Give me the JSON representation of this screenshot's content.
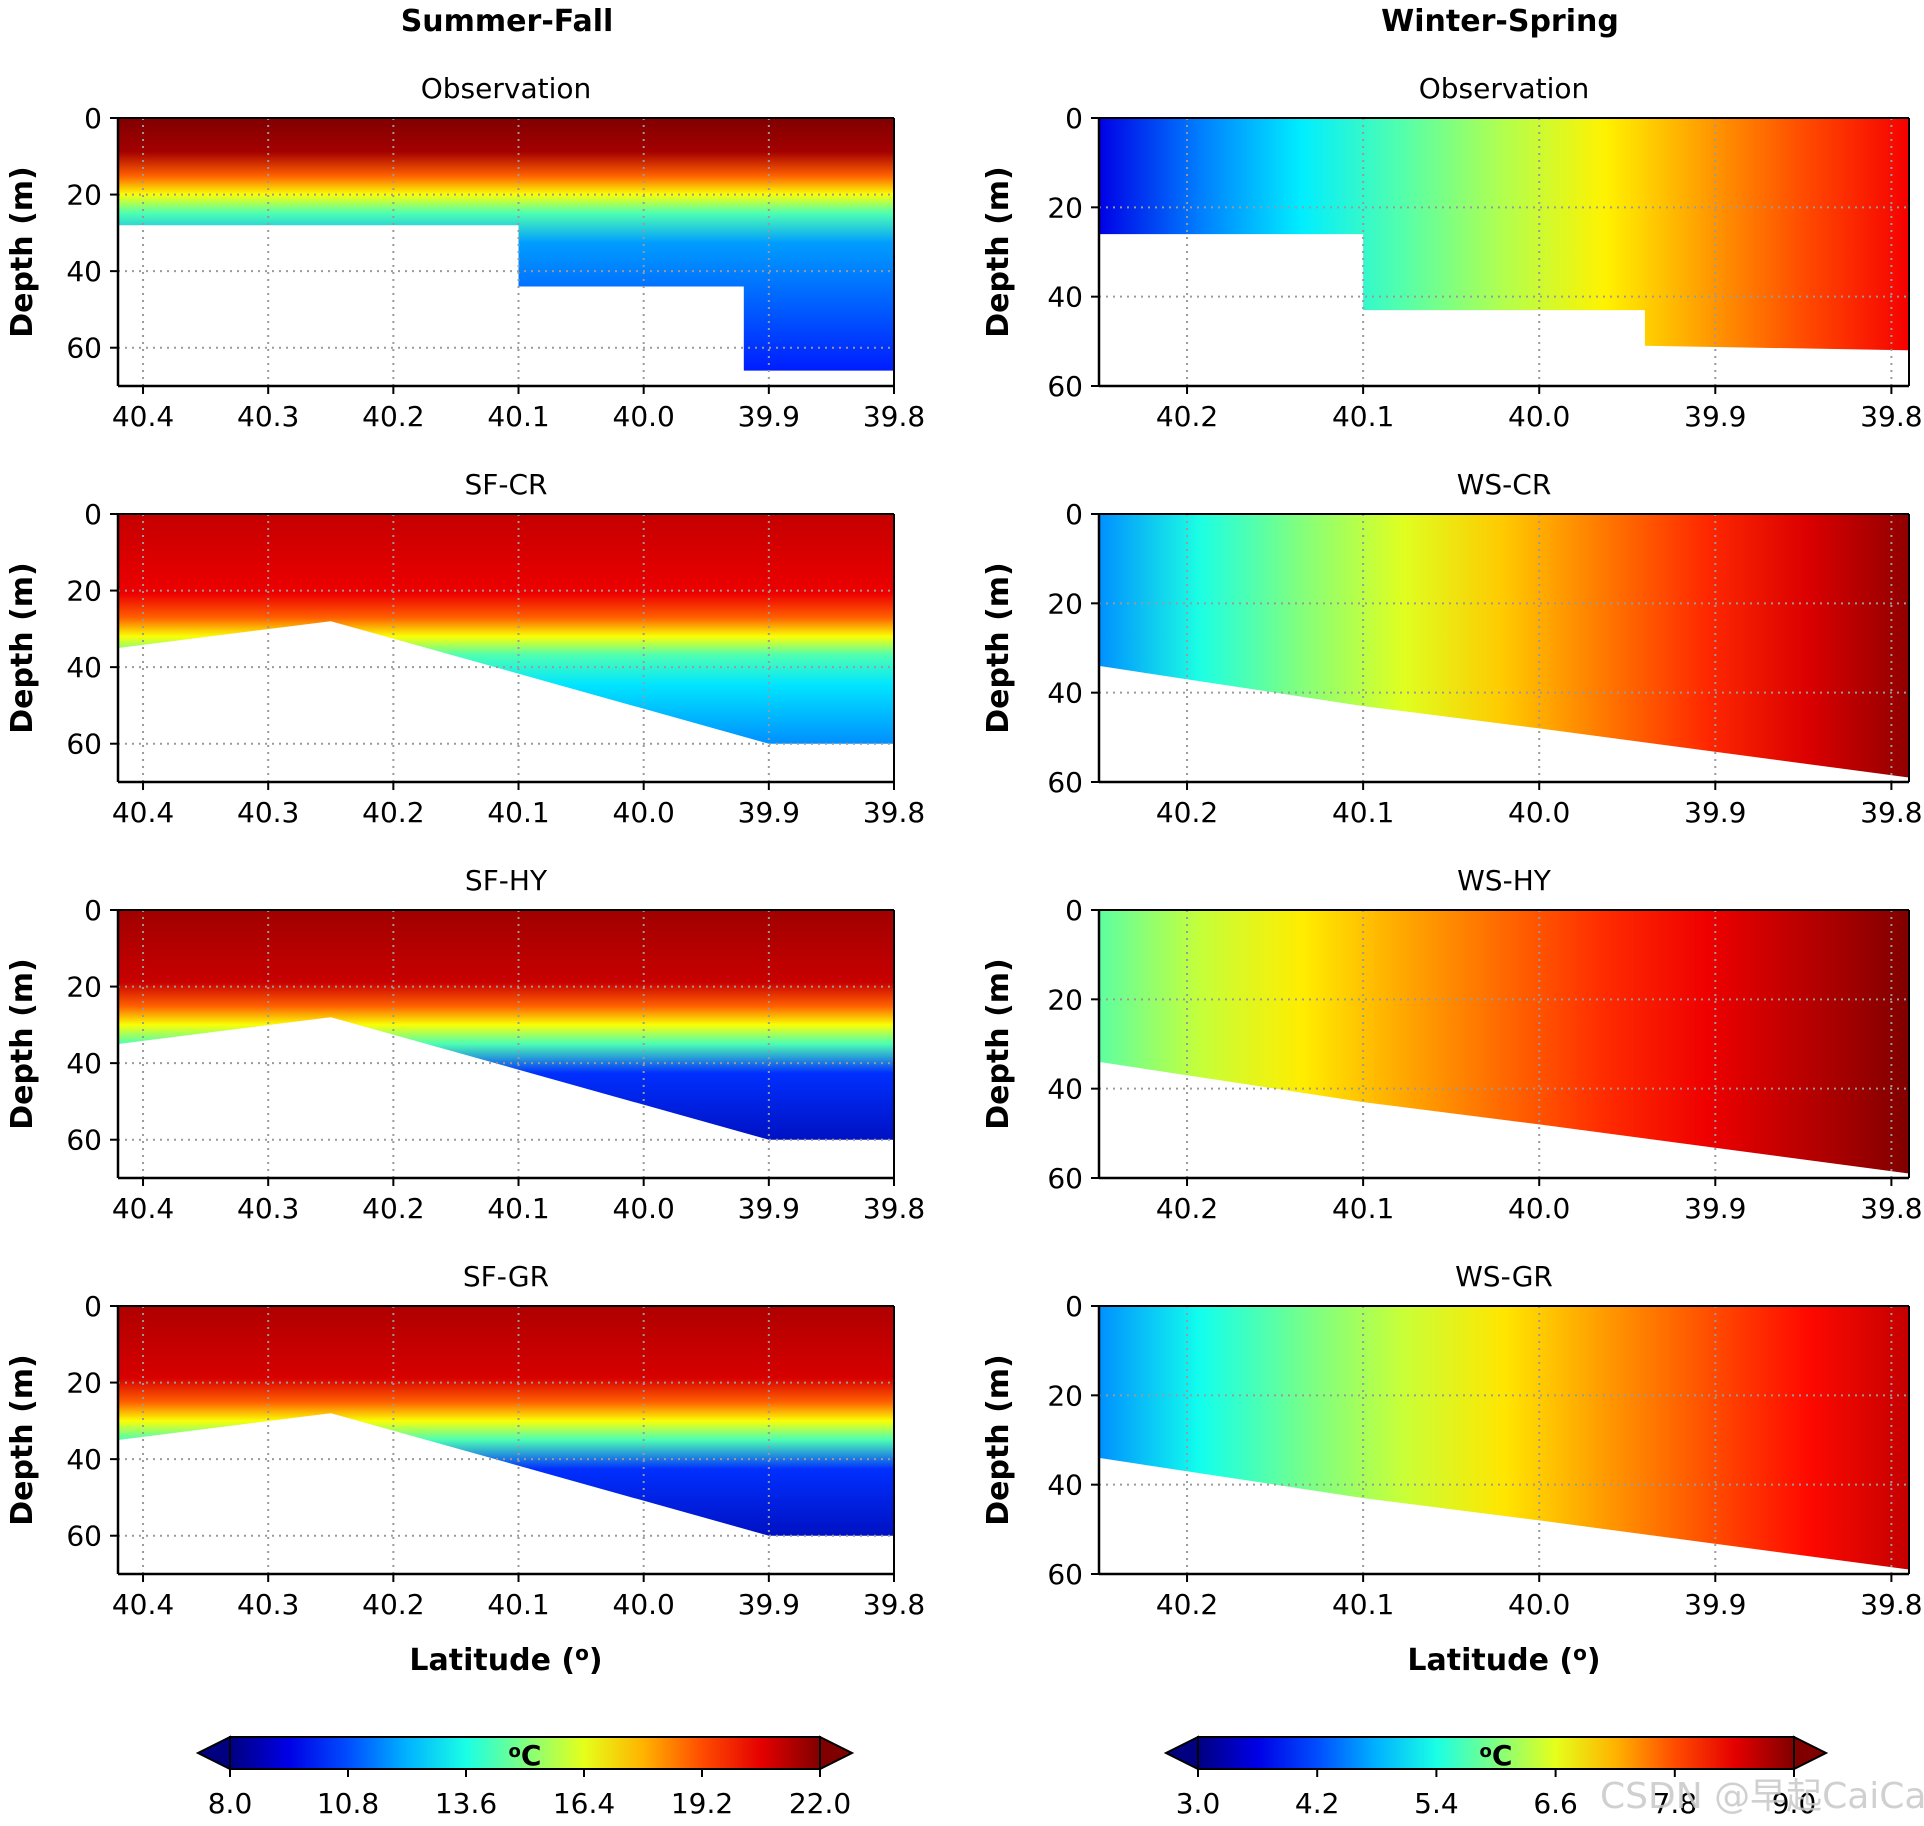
{
  "figure": {
    "column_titles": [
      "Summer-Fall",
      "Winter-Spring"
    ],
    "watermark": "CSDN @早起CaiCai"
  },
  "chart_data": [
    {
      "type": "heatmap",
      "column": 0,
      "row": 0,
      "title": "Observation",
      "xlabel": "",
      "ylabel": "Depth (m)",
      "xlim": [
        40.42,
        39.8
      ],
      "ylim": [
        70,
        0
      ],
      "xticks": [
        "40.4",
        "40.3",
        "40.2",
        "40.1",
        "40.0",
        "39.9",
        "39.8"
      ],
      "yticks": [
        "0",
        "20",
        "40",
        "60"
      ],
      "bottom_profile": [
        [
          40.42,
          28
        ],
        [
          40.1,
          28
        ],
        [
          40.1,
          44
        ],
        [
          39.92,
          44
        ],
        [
          39.92,
          66
        ],
        [
          39.8,
          66
        ]
      ],
      "temperature_field": {
        "colormap": "jet",
        "vmin": 8.0,
        "vmax": 22.0,
        "surface_layer_0_15m": 21.5,
        "thermocline_center_m": 20,
        "bottom_water": 10.5
      }
    },
    {
      "type": "heatmap",
      "column": 0,
      "row": 1,
      "title": "SF-CR",
      "xlabel": "",
      "ylabel": "Depth (m)",
      "xlim": [
        40.42,
        39.8
      ],
      "ylim": [
        70,
        0
      ],
      "xticks": [
        "40.4",
        "40.3",
        "40.2",
        "40.1",
        "40.0",
        "39.9",
        "39.8"
      ],
      "yticks": [
        "0",
        "20",
        "40",
        "60"
      ],
      "bottom_profile": [
        [
          40.42,
          35
        ],
        [
          40.25,
          28
        ],
        [
          39.9,
          60
        ],
        [
          39.8,
          60
        ]
      ],
      "temperature_field": {
        "colormap": "jet",
        "vmin": 8.0,
        "vmax": 22.0,
        "surface_layer_0_15m": 20.5,
        "thermocline_center_m": 32,
        "bottom_water": 11.5
      }
    },
    {
      "type": "heatmap",
      "column": 0,
      "row": 2,
      "title": "SF-HY",
      "xlabel": "",
      "ylabel": "Depth (m)",
      "xlim": [
        40.42,
        39.8
      ],
      "ylim": [
        70,
        0
      ],
      "xticks": [
        "40.4",
        "40.3",
        "40.2",
        "40.1",
        "40.0",
        "39.9",
        "39.8"
      ],
      "yticks": [
        "0",
        "20",
        "40",
        "60"
      ],
      "bottom_profile": [
        [
          40.42,
          35
        ],
        [
          40.25,
          28
        ],
        [
          39.9,
          60
        ],
        [
          39.8,
          60
        ]
      ],
      "temperature_field": {
        "colormap": "jet",
        "vmin": 8.0,
        "vmax": 22.0,
        "surface_layer_0_15m": 21.0,
        "thermocline_center_m": 30,
        "bottom_water": 9.0
      }
    },
    {
      "type": "heatmap",
      "column": 0,
      "row": 3,
      "title": "SF-GR",
      "xlabel": "Latitude (o)",
      "ylabel": "Depth (m)",
      "xlim": [
        40.42,
        39.8
      ],
      "ylim": [
        70,
        0
      ],
      "xticks": [
        "40.4",
        "40.3",
        "40.2",
        "40.1",
        "40.0",
        "39.9",
        "39.8"
      ],
      "yticks": [
        "0",
        "20",
        "40",
        "60"
      ],
      "bottom_profile": [
        [
          40.42,
          35
        ],
        [
          40.25,
          28
        ],
        [
          39.9,
          60
        ],
        [
          39.8,
          60
        ]
      ],
      "temperature_field": {
        "colormap": "jet",
        "vmin": 8.0,
        "vmax": 22.0,
        "surface_layer_0_15m": 20.8,
        "thermocline_center_m": 30,
        "bottom_water": 9.0
      }
    },
    {
      "type": "heatmap",
      "column": 1,
      "row": 0,
      "title": "Observation",
      "xlabel": "",
      "ylabel": "Depth (m)",
      "xlim": [
        40.25,
        39.79
      ],
      "ylim": [
        60,
        0
      ],
      "xticks": [
        "40.2",
        "40.1",
        "40.0",
        "39.9",
        "39.8"
      ],
      "yticks": [
        "0",
        "20",
        "40",
        "60"
      ],
      "bottom_profile": [
        [
          40.25,
          26
        ],
        [
          40.1,
          26
        ],
        [
          40.1,
          43
        ],
        [
          39.94,
          43
        ],
        [
          39.94,
          51
        ],
        [
          39.79,
          52
        ]
      ],
      "temperature_field": {
        "colormap": "jet",
        "vmin": 3.0,
        "vmax": 9.0,
        "south_end": 8.3,
        "north_end": 3.6
      }
    },
    {
      "type": "heatmap",
      "column": 1,
      "row": 1,
      "title": "WS-CR",
      "xlabel": "",
      "ylabel": "Depth (m)",
      "xlim": [
        40.25,
        39.79
      ],
      "ylim": [
        60,
        0
      ],
      "xticks": [
        "40.2",
        "40.1",
        "40.0",
        "39.9",
        "39.8"
      ],
      "yticks": [
        "0",
        "20",
        "40",
        "60"
      ],
      "bottom_profile": [
        [
          40.25,
          34
        ],
        [
          40.1,
          43
        ],
        [
          40.0,
          48
        ],
        [
          39.79,
          59
        ]
      ],
      "temperature_field": {
        "colormap": "jet",
        "vmin": 3.0,
        "vmax": 9.0,
        "south_end": 8.9,
        "north_end": 4.6
      }
    },
    {
      "type": "heatmap",
      "column": 1,
      "row": 2,
      "title": "WS-HY",
      "xlabel": "",
      "ylabel": "Depth (m)",
      "xlim": [
        40.25,
        39.79
      ],
      "ylim": [
        60,
        0
      ],
      "xticks": [
        "40.2",
        "40.1",
        "40.0",
        "39.9",
        "39.8"
      ],
      "yticks": [
        "0",
        "20",
        "40",
        "60"
      ],
      "bottom_profile": [
        [
          40.25,
          34
        ],
        [
          40.1,
          43
        ],
        [
          40.0,
          48
        ],
        [
          39.79,
          59
        ]
      ],
      "temperature_field": {
        "colormap": "jet",
        "vmin": 3.0,
        "vmax": 9.0,
        "south_end": 9.0,
        "north_end": 5.8
      }
    },
    {
      "type": "heatmap",
      "column": 1,
      "row": 3,
      "title": "WS-GR",
      "xlabel": "Latitude (o)",
      "ylabel": "Depth (m)",
      "xlim": [
        40.25,
        39.79
      ],
      "ylim": [
        60,
        0
      ],
      "xticks": [
        "40.2",
        "40.1",
        "40.0",
        "39.9",
        "39.8"
      ],
      "yticks": [
        "0",
        "20",
        "40",
        "60"
      ],
      "bottom_profile": [
        [
          40.25,
          34
        ],
        [
          40.1,
          43
        ],
        [
          40.0,
          48
        ],
        [
          39.79,
          59
        ]
      ],
      "temperature_field": {
        "colormap": "jet",
        "vmin": 3.0,
        "vmax": 9.0,
        "south_end": 8.6,
        "north_end": 4.6
      }
    }
  ],
  "colorbars": [
    {
      "unit": "oC",
      "vmin": 8.0,
      "vmax": 22.0,
      "ticks": [
        8.0,
        10.8,
        13.6,
        16.4,
        19.2,
        22.0
      ],
      "tick_labels": [
        "8.0",
        "10.8",
        "13.6",
        "16.4",
        "19.2",
        "22.0"
      ],
      "extend": "both",
      "colormap": "jet"
    },
    {
      "unit": "oC",
      "vmin": 3.0,
      "vmax": 9.0,
      "ticks": [
        3.0,
        4.2,
        5.4,
        6.6,
        7.8,
        9.0
      ],
      "tick_labels": [
        "3.0",
        "4.2",
        "5.4",
        "6.6",
        "7.8",
        "9.0"
      ],
      "extend": "both",
      "colormap": "jet"
    }
  ]
}
